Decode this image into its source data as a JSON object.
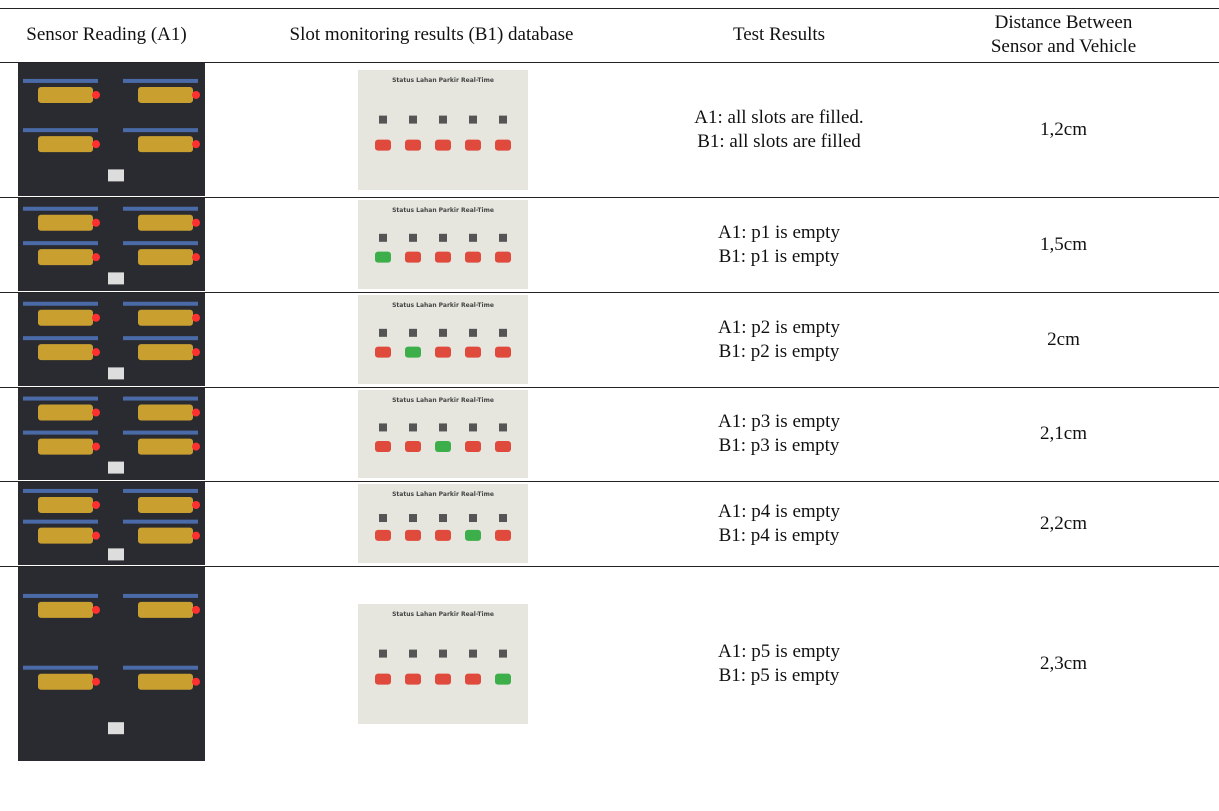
{
  "header": [
    "Sensor Reading (A1)",
    "Slot monitoring results (B1) database",
    "Test Results",
    "Distance Between Sensor and Vehicle"
  ],
  "rows": [
    {
      "screen_title": "Status Lahan Parkir Real-Time",
      "slot_colors": [
        "#e04a3c",
        "#e04a3c",
        "#e04a3c",
        "#e04a3c",
        "#e04a3c"
      ],
      "test_results": [
        "A1: all slots are filled.",
        "B1: all slots are filled"
      ],
      "distance": "1,2cm"
    },
    {
      "screen_title": "Status Lahan Parkir Real-Time",
      "slot_colors": [
        "#3cae4a",
        "#e04a3c",
        "#e04a3c",
        "#e04a3c",
        "#e04a3c"
      ],
      "test_results": [
        "A1: p1 is empty",
        "B1: p1 is empty"
      ],
      "distance": "1,5cm"
    },
    {
      "screen_title": "Status Lahan Parkir Real-Time",
      "slot_colors": [
        "#e04a3c",
        "#3cae4a",
        "#e04a3c",
        "#e04a3c",
        "#e04a3c"
      ],
      "test_results": [
        "A1: p2 is empty",
        "B1: p2 is empty"
      ],
      "distance": "2cm"
    },
    {
      "screen_title": "Status Lahan Parkir Real-Time",
      "slot_colors": [
        "#e04a3c",
        "#e04a3c",
        "#3cae4a",
        "#e04a3c",
        "#e04a3c"
      ],
      "test_results": [
        "A1: p3 is empty",
        "B1: p3 is empty"
      ],
      "distance": "2,1cm"
    },
    {
      "screen_title": "Status Lahan Parkir Real-Time",
      "slot_colors": [
        "#e04a3c",
        "#e04a3c",
        "#e04a3c",
        "#3cae4a",
        "#e04a3c"
      ],
      "test_results": [
        "A1: p4 is empty",
        "B1: p4 is empty"
      ],
      "distance": "2,2cm"
    },
    {
      "screen_title": "Status Lahan Parkir Real-Time",
      "slot_colors": [
        "#e04a3c",
        "#e04a3c",
        "#e04a3c",
        "#e04a3c",
        "#3cae4a"
      ],
      "test_results": [
        "A1: p5 is empty",
        "B1: p5 is empty"
      ],
      "distance": "2,3cm"
    }
  ]
}
